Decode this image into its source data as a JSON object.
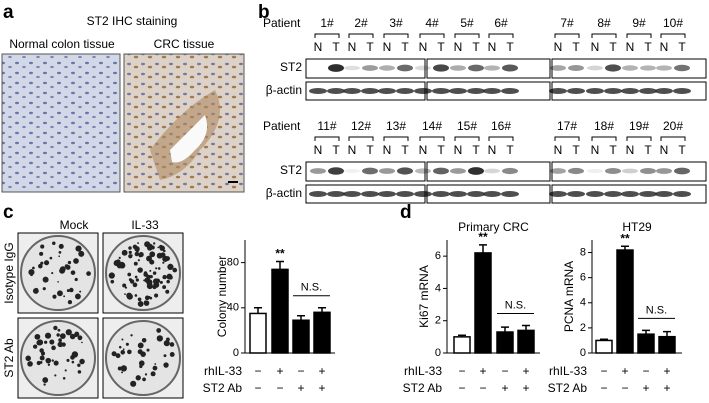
{
  "panel_labels": [
    "a",
    "b",
    "c",
    "d"
  ],
  "panel_a": {
    "title": "ST2 IHC  staining",
    "left_label": "Normal colon tissue",
    "right_label": "CRC tissue"
  },
  "panel_b": {
    "patient_label": "Patient",
    "row1": [
      "1#",
      "2#",
      "3#",
      "4#",
      "5#",
      "6#",
      "7#",
      "8#",
      "9#",
      "10#"
    ],
    "row2": [
      "11#",
      "12#",
      "13#",
      "14#",
      "15#",
      "16#",
      "17#",
      "18#",
      "19#",
      "20#"
    ],
    "lane_labels": [
      "N",
      "T"
    ],
    "blot_labels": [
      "ST2",
      "β-actin"
    ]
  },
  "panel_c": {
    "columns": [
      "Mock",
      "IL-33"
    ],
    "rows": [
      "Isotype IgG",
      "ST2 Ab"
    ]
  },
  "chart_data": [
    {
      "type": "bar",
      "ylabel": "Colony number",
      "ylim": [
        0,
        100
      ],
      "yticks": [
        0,
        40,
        80
      ],
      "values": [
        35,
        74,
        29,
        36
      ],
      "errors": [
        5,
        7,
        4,
        4
      ],
      "bar_colors": [
        "#ffffff",
        "#000000",
        "#000000",
        "#000000"
      ],
      "significance": [
        null,
        "**",
        null,
        null
      ],
      "group_label": "N.S.",
      "treatments": [
        {
          "name": "rhIL-33",
          "signs": [
            "−",
            "+",
            "−",
            "+"
          ]
        },
        {
          "name": "ST2 Ab",
          "signs": [
            "−",
            "−",
            "+",
            "+"
          ]
        }
      ]
    },
    {
      "type": "bar",
      "title": "Primary CRC",
      "ylabel": "Ki67 mRNA",
      "ylim": [
        0,
        7
      ],
      "yticks": [
        0,
        2,
        4,
        6
      ],
      "values": [
        1,
        6.2,
        1.3,
        1.4
      ],
      "errors": [
        0.1,
        0.5,
        0.3,
        0.3
      ],
      "bar_colors": [
        "#ffffff",
        "#000000",
        "#000000",
        "#000000"
      ],
      "significance": [
        null,
        "**",
        null,
        null
      ],
      "group_label": "N.S.",
      "treatments": [
        {
          "name": "rhIL-33",
          "signs": [
            "−",
            "+",
            "−",
            "+"
          ]
        },
        {
          "name": "ST2 Ab",
          "signs": [
            "−",
            "−",
            "+",
            "+"
          ]
        }
      ]
    },
    {
      "type": "bar",
      "title": "HT29",
      "ylabel": "PCNA mRNA",
      "ylim": [
        0,
        9
      ],
      "yticks": [
        0,
        2,
        4,
        6,
        8
      ],
      "values": [
        1,
        8.2,
        1.5,
        1.3
      ],
      "errors": [
        0.1,
        0.3,
        0.3,
        0.4
      ],
      "bar_colors": [
        "#ffffff",
        "#000000",
        "#000000",
        "#000000"
      ],
      "significance": [
        null,
        "**",
        null,
        null
      ],
      "group_label": "N.S.",
      "treatments": [
        {
          "name": "rhIL-33",
          "signs": [
            "−",
            "+",
            "−",
            "+"
          ]
        },
        {
          "name": "ST2 Ab",
          "signs": [
            "−",
            "−",
            "+",
            "+"
          ]
        }
      ]
    }
  ]
}
